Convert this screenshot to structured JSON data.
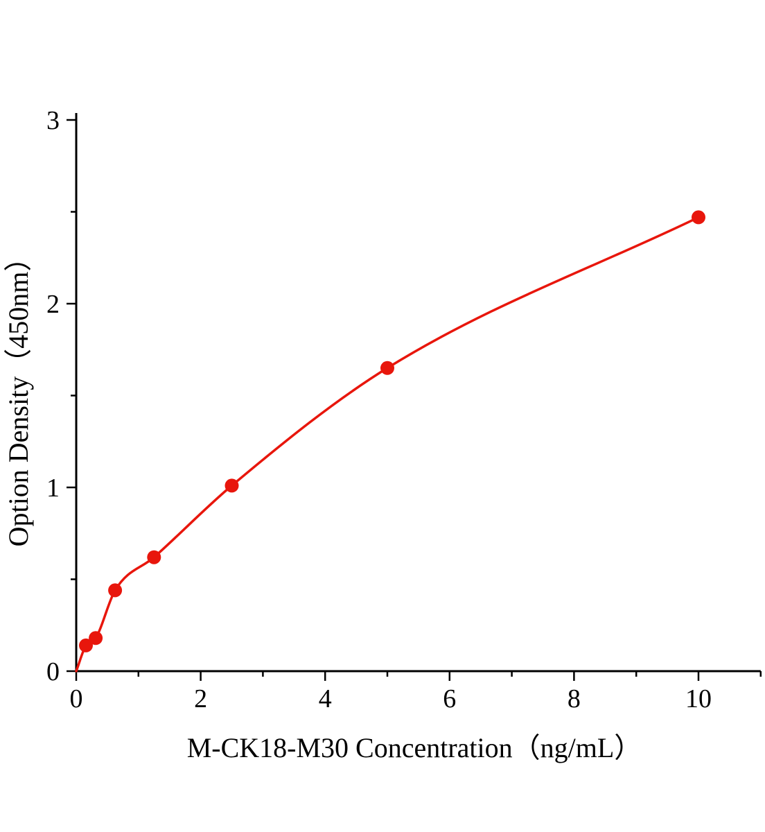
{
  "chart_data": {
    "type": "scatter",
    "title": "",
    "xlabel": "M-CK18-M30 Concentration（ng/mL）",
    "ylabel": "Option Density（450nm）",
    "accent_color": "#e8160c",
    "axis_color": "#000000",
    "xlim": [
      0,
      11
    ],
    "ylim": [
      0,
      3
    ],
    "x_ticks": [
      0,
      2,
      4,
      6,
      8,
      10
    ],
    "x_minor_ticks": [
      1,
      3,
      5,
      7,
      9,
      11
    ],
    "y_ticks": [
      0,
      1,
      2,
      3
    ],
    "y_minor_ticks": [
      0.5,
      1.5,
      2.5
    ],
    "curve_start": {
      "x": 0,
      "y": 0
    },
    "points": [
      {
        "x": 0.156,
        "y": 0.14
      },
      {
        "x": 0.3125,
        "y": 0.18
      },
      {
        "x": 0.625,
        "y": 0.44
      },
      {
        "x": 1.25,
        "y": 0.62
      },
      {
        "x": 2.5,
        "y": 1.01
      },
      {
        "x": 5,
        "y": 1.65
      },
      {
        "x": 10,
        "y": 2.47
      }
    ]
  }
}
